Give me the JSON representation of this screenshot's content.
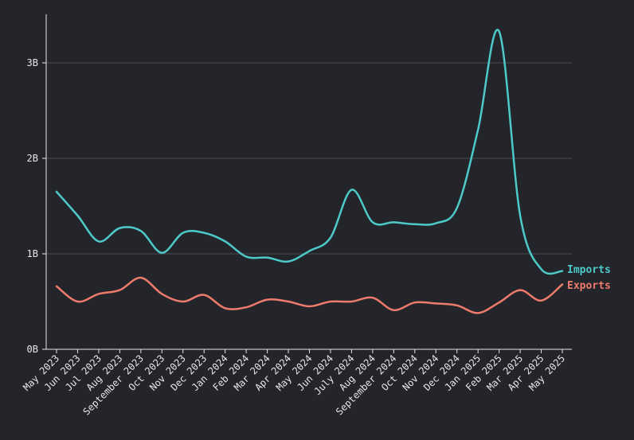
{
  "chart_data": {
    "type": "line",
    "title": "",
    "xlabel": "",
    "ylabel": "",
    "categories": [
      "May 2023",
      "Jun 2023",
      "Jul 2023",
      "Aug 2023",
      "September 2023",
      "Oct 2023",
      "Nov 2023",
      "Dec 2023",
      "Jan 2024",
      "Feb 2024",
      "Mar 2024",
      "Apr 2024",
      "May 2024",
      "Jun 2024",
      "July 2024",
      "Aug 2024",
      "September 2024",
      "Oct 2024",
      "Nov 2024",
      "Dec 2024",
      "Jan 2025",
      "Feb 2025",
      "Mar 2025",
      "Apr 2025",
      "May 2025"
    ],
    "ylim": [
      0,
      3.5
    ],
    "yticks": [
      {
        "value": 0,
        "label": "0B"
      },
      {
        "value": 1,
        "label": "1B"
      },
      {
        "value": 2,
        "label": "2B"
      },
      {
        "value": 3,
        "label": "3B"
      }
    ],
    "grid": true,
    "series": [
      {
        "name": "Imports",
        "color": "#4ec9c9",
        "values": [
          1.65,
          1.4,
          1.13,
          1.27,
          1.24,
          1.01,
          1.22,
          1.22,
          1.13,
          0.97,
          0.96,
          0.92,
          1.03,
          1.17,
          1.67,
          1.33,
          1.33,
          1.31,
          1.32,
          1.48,
          2.3,
          3.33,
          1.4,
          0.84,
          0.82
        ]
      },
      {
        "name": "Exports",
        "color": "#ee7b6c",
        "values": [
          0.66,
          0.5,
          0.58,
          0.62,
          0.75,
          0.58,
          0.5,
          0.57,
          0.43,
          0.44,
          0.52,
          0.5,
          0.45,
          0.5,
          0.5,
          0.54,
          0.41,
          0.49,
          0.48,
          0.46,
          0.38,
          0.49,
          0.62,
          0.51,
          0.68
        ]
      }
    ]
  }
}
